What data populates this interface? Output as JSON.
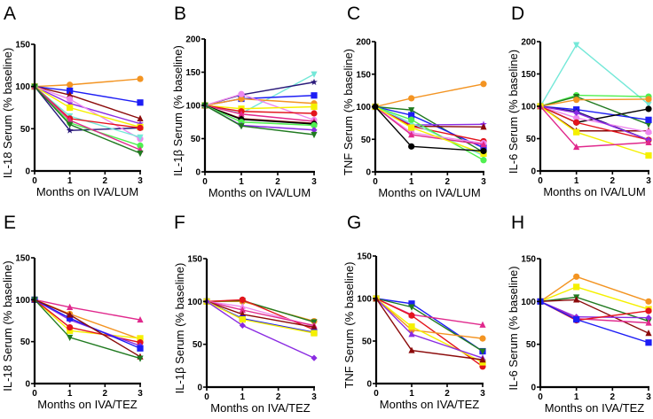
{
  "colors": {
    "orange": "#f39422",
    "blue": "#1d1df5",
    "darkred": "#8b0a0a",
    "purple": "#8a2be2",
    "navy": "#2a1a7a",
    "yellow": "#f5f000",
    "cyan": "#74e8d8",
    "red": "#e3141c",
    "lightgreen": "#4ff04f",
    "darkgreen": "#207a20",
    "magenta": "#e0288c",
    "pink": "#ee88ee",
    "black": "#000000"
  },
  "chart_data": [
    {
      "panel": "A",
      "type": "line",
      "xlabel": "Months on IVA/LUM",
      "ylabel": "IL-18 Serum (% baseline)",
      "x": [
        0,
        1,
        3
      ],
      "xticks": [
        "0",
        "1",
        "2",
        "3"
      ],
      "ylim": [
        0,
        150
      ],
      "yticks": [
        "0",
        "50",
        "100",
        "150"
      ],
      "series": [
        [
          "orange",
          "circle",
          102,
          109
        ],
        [
          "blue",
          "square",
          95,
          81
        ],
        [
          "darkred",
          "triangle",
          90,
          62
        ],
        [
          "purple",
          "star",
          80,
          56
        ],
        [
          "navy",
          "star",
          48,
          51
        ],
        [
          "pink",
          "circle",
          85,
          38
        ],
        [
          "yellow",
          "square",
          75,
          52
        ],
        [
          "cyan",
          "invtriangle",
          65,
          40
        ],
        [
          "red",
          "circle",
          62,
          51
        ],
        [
          "lightgreen",
          "circle",
          57,
          30
        ],
        [
          "magenta",
          "triangle",
          60,
          25
        ],
        [
          "darkgreen",
          "invtriangle",
          55,
          21
        ]
      ]
    },
    {
      "panel": "B",
      "type": "line",
      "xlabel": "Months on IVA/LUM",
      "ylabel": "IL-1β Serum (% baseline)",
      "x": [
        0,
        1,
        3
      ],
      "xticks": [
        "0",
        "1",
        "2",
        "3"
      ],
      "ylim": [
        0,
        200
      ],
      "yticks": [
        "0",
        "50",
        "100",
        "150",
        "200"
      ],
      "series": [
        [
          "cyan",
          "invtriangle",
          88,
          147
        ],
        [
          "navy",
          "star",
          116,
          135
        ],
        [
          "blue",
          "square",
          110,
          115
        ],
        [
          "orange",
          "circle",
          110,
          103
        ],
        [
          "pink",
          "circle",
          117,
          78
        ],
        [
          "yellow",
          "square",
          95,
          98
        ],
        [
          "red",
          "circle",
          91,
          88
        ],
        [
          "magenta",
          "triangle",
          87,
          76
        ],
        [
          "darkred",
          "triangle",
          80,
          73
        ],
        [
          "black",
          "circle",
          79,
          72
        ],
        [
          "lightgreen",
          "circle",
          75,
          70
        ],
        [
          "purple",
          "diamond",
          70,
          63
        ],
        [
          "darkgreen",
          "invtriangle",
          69,
          56
        ]
      ]
    },
    {
      "panel": "C",
      "type": "line",
      "xlabel": "Months on IVA/LUM",
      "ylabel": "TNF Serum (% baseline)",
      "x": [
        0,
        1,
        3
      ],
      "xticks": [
        "0",
        "1",
        "2",
        "3"
      ],
      "ylim": [
        0,
        200
      ],
      "yticks": [
        "0",
        "50",
        "100",
        "150",
        "200"
      ],
      "series": [
        [
          "orange",
          "circle",
          113,
          135
        ],
        [
          "darkgreen",
          "invtriangle",
          95,
          30
        ],
        [
          "blue",
          "square",
          87,
          37
        ],
        [
          "purple",
          "star",
          72,
          73
        ],
        [
          "darkred",
          "triangle",
          70,
          69
        ],
        [
          "red",
          "circle",
          70,
          47
        ],
        [
          "cyan",
          "invtriangle",
          75,
          25
        ],
        [
          "lightgreen",
          "circle",
          80,
          18
        ],
        [
          "pink",
          "circle",
          60,
          44
        ],
        [
          "magenta",
          "triangle",
          57,
          42
        ],
        [
          "yellow",
          "square",
          68,
          28
        ],
        [
          "black",
          "circle",
          39,
          32
        ]
      ]
    },
    {
      "panel": "D",
      "type": "line",
      "xlabel": "Months on IVA/LUM",
      "ylabel": "IL-6 Serum (% baseline)",
      "x": [
        0,
        1,
        3
      ],
      "xticks": [
        "0",
        "1",
        "2",
        "3"
      ],
      "ylim": [
        0,
        200
      ],
      "yticks": [
        "0",
        "50",
        "100",
        "150",
        "200"
      ],
      "series": [
        [
          "cyan",
          "invtriangle",
          195,
          103
        ],
        [
          "lightgreen",
          "circle",
          117,
          115
        ],
        [
          "darkgreen",
          "invtriangle",
          115,
          72
        ],
        [
          "orange",
          "circle",
          110,
          111
        ],
        [
          "blue",
          "square",
          95,
          79
        ],
        [
          "navy",
          "star",
          92,
          48
        ],
        [
          "black",
          "circle",
          75,
          96
        ],
        [
          "darkred",
          "triangle",
          62,
          62
        ],
        [
          "pink",
          "circle",
          82,
          60
        ],
        [
          "red",
          "circle",
          75,
          48
        ],
        [
          "purple",
          "diamond",
          90,
          48
        ],
        [
          "yellow",
          "square",
          60,
          24
        ],
        [
          "magenta",
          "triangle",
          37,
          44
        ]
      ]
    },
    {
      "panel": "E",
      "type": "line",
      "xlabel": "Months on IVA/TEZ",
      "ylabel": "IL-18 Serum (% baseline)",
      "x": [
        0,
        1,
        3
      ],
      "xticks": [
        "0",
        "1",
        "2",
        "3"
      ],
      "ylim": [
        0,
        150
      ],
      "yticks": [
        "0",
        "50",
        "100",
        "150"
      ],
      "series": [
        [
          "magenta",
          "triangle",
          91,
          76
        ],
        [
          "orange",
          "circle",
          83,
          53
        ],
        [
          "yellow",
          "square",
          63,
          54
        ],
        [
          "red",
          "circle",
          67,
          49
        ],
        [
          "purple",
          "diamond",
          76,
          45
        ],
        [
          "blue",
          "square",
          78,
          42
        ],
        [
          "darkred",
          "triangle",
          82,
          32
        ],
        [
          "darkgreen",
          "invtriangle",
          55,
          30
        ]
      ]
    },
    {
      "panel": "F",
      "type": "line",
      "xlabel": "Months on IVA/TEZ",
      "ylabel": "IL-1β Serum (% baseline)",
      "x": [
        0,
        1,
        3
      ],
      "xticks": [
        "0",
        "1",
        "2",
        "3"
      ],
      "ylim": [
        0,
        150
      ],
      "yticks": [
        "0",
        "50",
        "100",
        "150"
      ],
      "series": [
        [
          "orange",
          "circle",
          100,
          77
        ],
        [
          "darkgreen",
          "invtriangle",
          101,
          76
        ],
        [
          "red",
          "circle",
          102,
          67
        ],
        [
          "pink",
          "triangle",
          94,
          71
        ],
        [
          "magenta",
          "triangle",
          90,
          72
        ],
        [
          "darkred",
          "triangle",
          85,
          70
        ],
        [
          "blue",
          "square",
          80,
          64
        ],
        [
          "yellow",
          "square",
          79,
          63
        ],
        [
          "purple",
          "diamond",
          72,
          34
        ]
      ]
    },
    {
      "panel": "G",
      "type": "line",
      "xlabel": "Months on IVA/TEZ",
      "ylabel": "TNF Serum (% baseline)",
      "x": [
        0,
        1,
        3
      ],
      "xticks": [
        "0",
        "1",
        "2",
        "3"
      ],
      "ylim": [
        0,
        150
      ],
      "yticks": [
        "0",
        "50",
        "100",
        "150"
      ],
      "series": [
        [
          "blue",
          "square",
          94,
          38
        ],
        [
          "darkgreen",
          "invtriangle",
          90,
          38
        ],
        [
          "magenta",
          "triangle",
          81,
          69
        ],
        [
          "red",
          "circle",
          80,
          20
        ],
        [
          "orange",
          "circle",
          63,
          53
        ],
        [
          "yellow",
          "square",
          67,
          25
        ],
        [
          "purple",
          "triangle",
          58,
          30
        ],
        [
          "darkred",
          "triangle",
          39,
          28
        ]
      ]
    },
    {
      "panel": "H",
      "type": "line",
      "xlabel": "Months on IVA/TEZ",
      "ylabel": "IL-6 Serum (% baseline)",
      "x": [
        0,
        1,
        3
      ],
      "xticks": [
        "0",
        "1",
        "2",
        "3"
      ],
      "ylim": [
        0,
        150
      ],
      "yticks": [
        "0",
        "50",
        "100",
        "150"
      ],
      "series": [
        [
          "orange",
          "circle",
          129,
          100
        ],
        [
          "yellow",
          "square",
          117,
          91
        ],
        [
          "darkgreen",
          "invtriangle",
          105,
          77
        ],
        [
          "darkred",
          "triangle",
          102,
          63
        ],
        [
          "purple",
          "diamond",
          82,
          81
        ],
        [
          "magenta",
          "triangle",
          80,
          75
        ],
        [
          "red",
          "circle",
          78,
          89
        ],
        [
          "blue",
          "square",
          79,
          52
        ]
      ]
    }
  ]
}
